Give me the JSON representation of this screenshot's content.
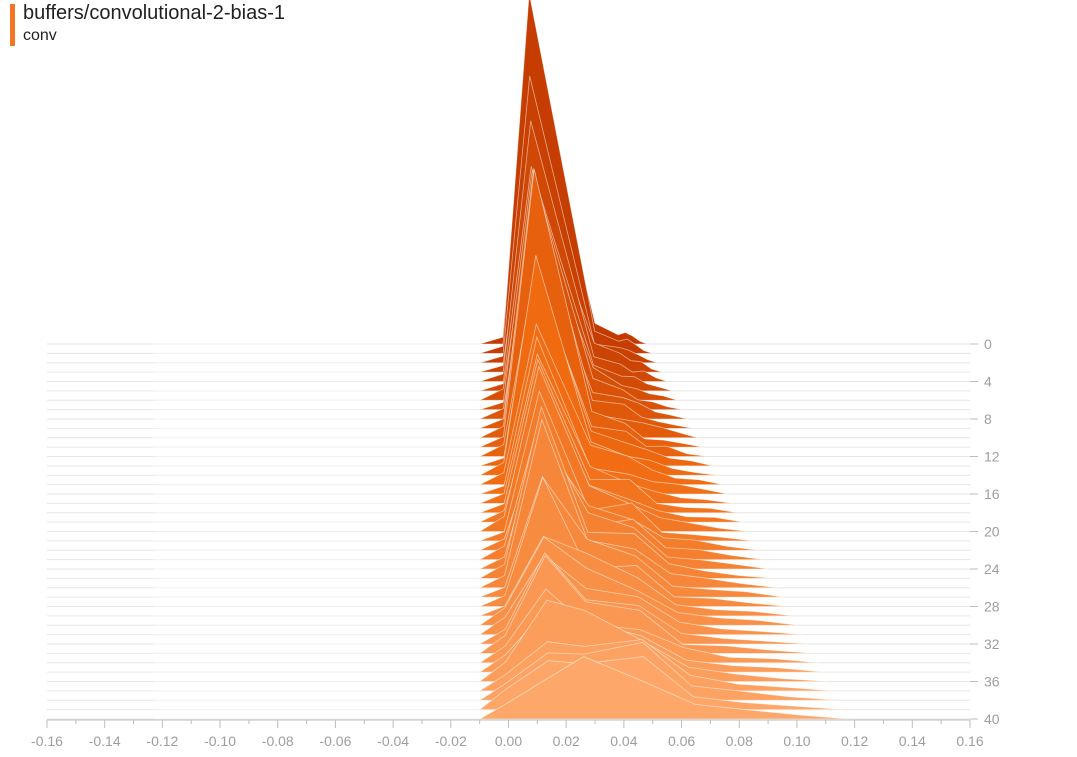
{
  "header": {
    "title": "buffers/convolutional-2-bias-1",
    "subtitle": "conv"
  },
  "colors": {
    "accent": "#f37626",
    "back_series": "#c23a00",
    "mid_series": "#f06a10",
    "front_series": "#fda86a",
    "line": "#ffffff",
    "axis": "#9e9e9e"
  },
  "chart_data": {
    "type": "area",
    "variant": "histogram-offset",
    "xlim": [
      -0.16,
      0.16
    ],
    "x_ticks": [
      "-0.16",
      "-0.14",
      "-0.12",
      "-0.10",
      "-0.08",
      "-0.06",
      "-0.04",
      "-0.02",
      "0.00",
      "0.02",
      "0.04",
      "0.06",
      "0.08",
      "0.10",
      "0.12",
      "0.14",
      "0.16"
    ],
    "step_range": [
      0,
      40
    ],
    "step_ticks": [
      "0",
      "4",
      "8",
      "12",
      "16",
      "20",
      "24",
      "28",
      "32",
      "36",
      "40"
    ],
    "grid": true,
    "steps": 41,
    "left_edge": -0.123,
    "right_edge_first": 0.048,
    "right_edge_last": 0.118,
    "peaks": [
      {
        "x_first": 0.007,
        "x_last": 0.014,
        "height_first": 0.75,
        "height_last": 0.1
      },
      {
        "x_first": 0.03,
        "x_last": 0.026,
        "height_first": 0.05,
        "height_last": 0.15
      },
      {
        "x_first": 0.038,
        "x_last": 0.047,
        "height_first": 0.03,
        "height_last": 0.12
      },
      {
        "x_first": -0.002,
        "x_last": -0.001,
        "height_first": 0.02,
        "height_last": 0.04
      }
    ]
  }
}
